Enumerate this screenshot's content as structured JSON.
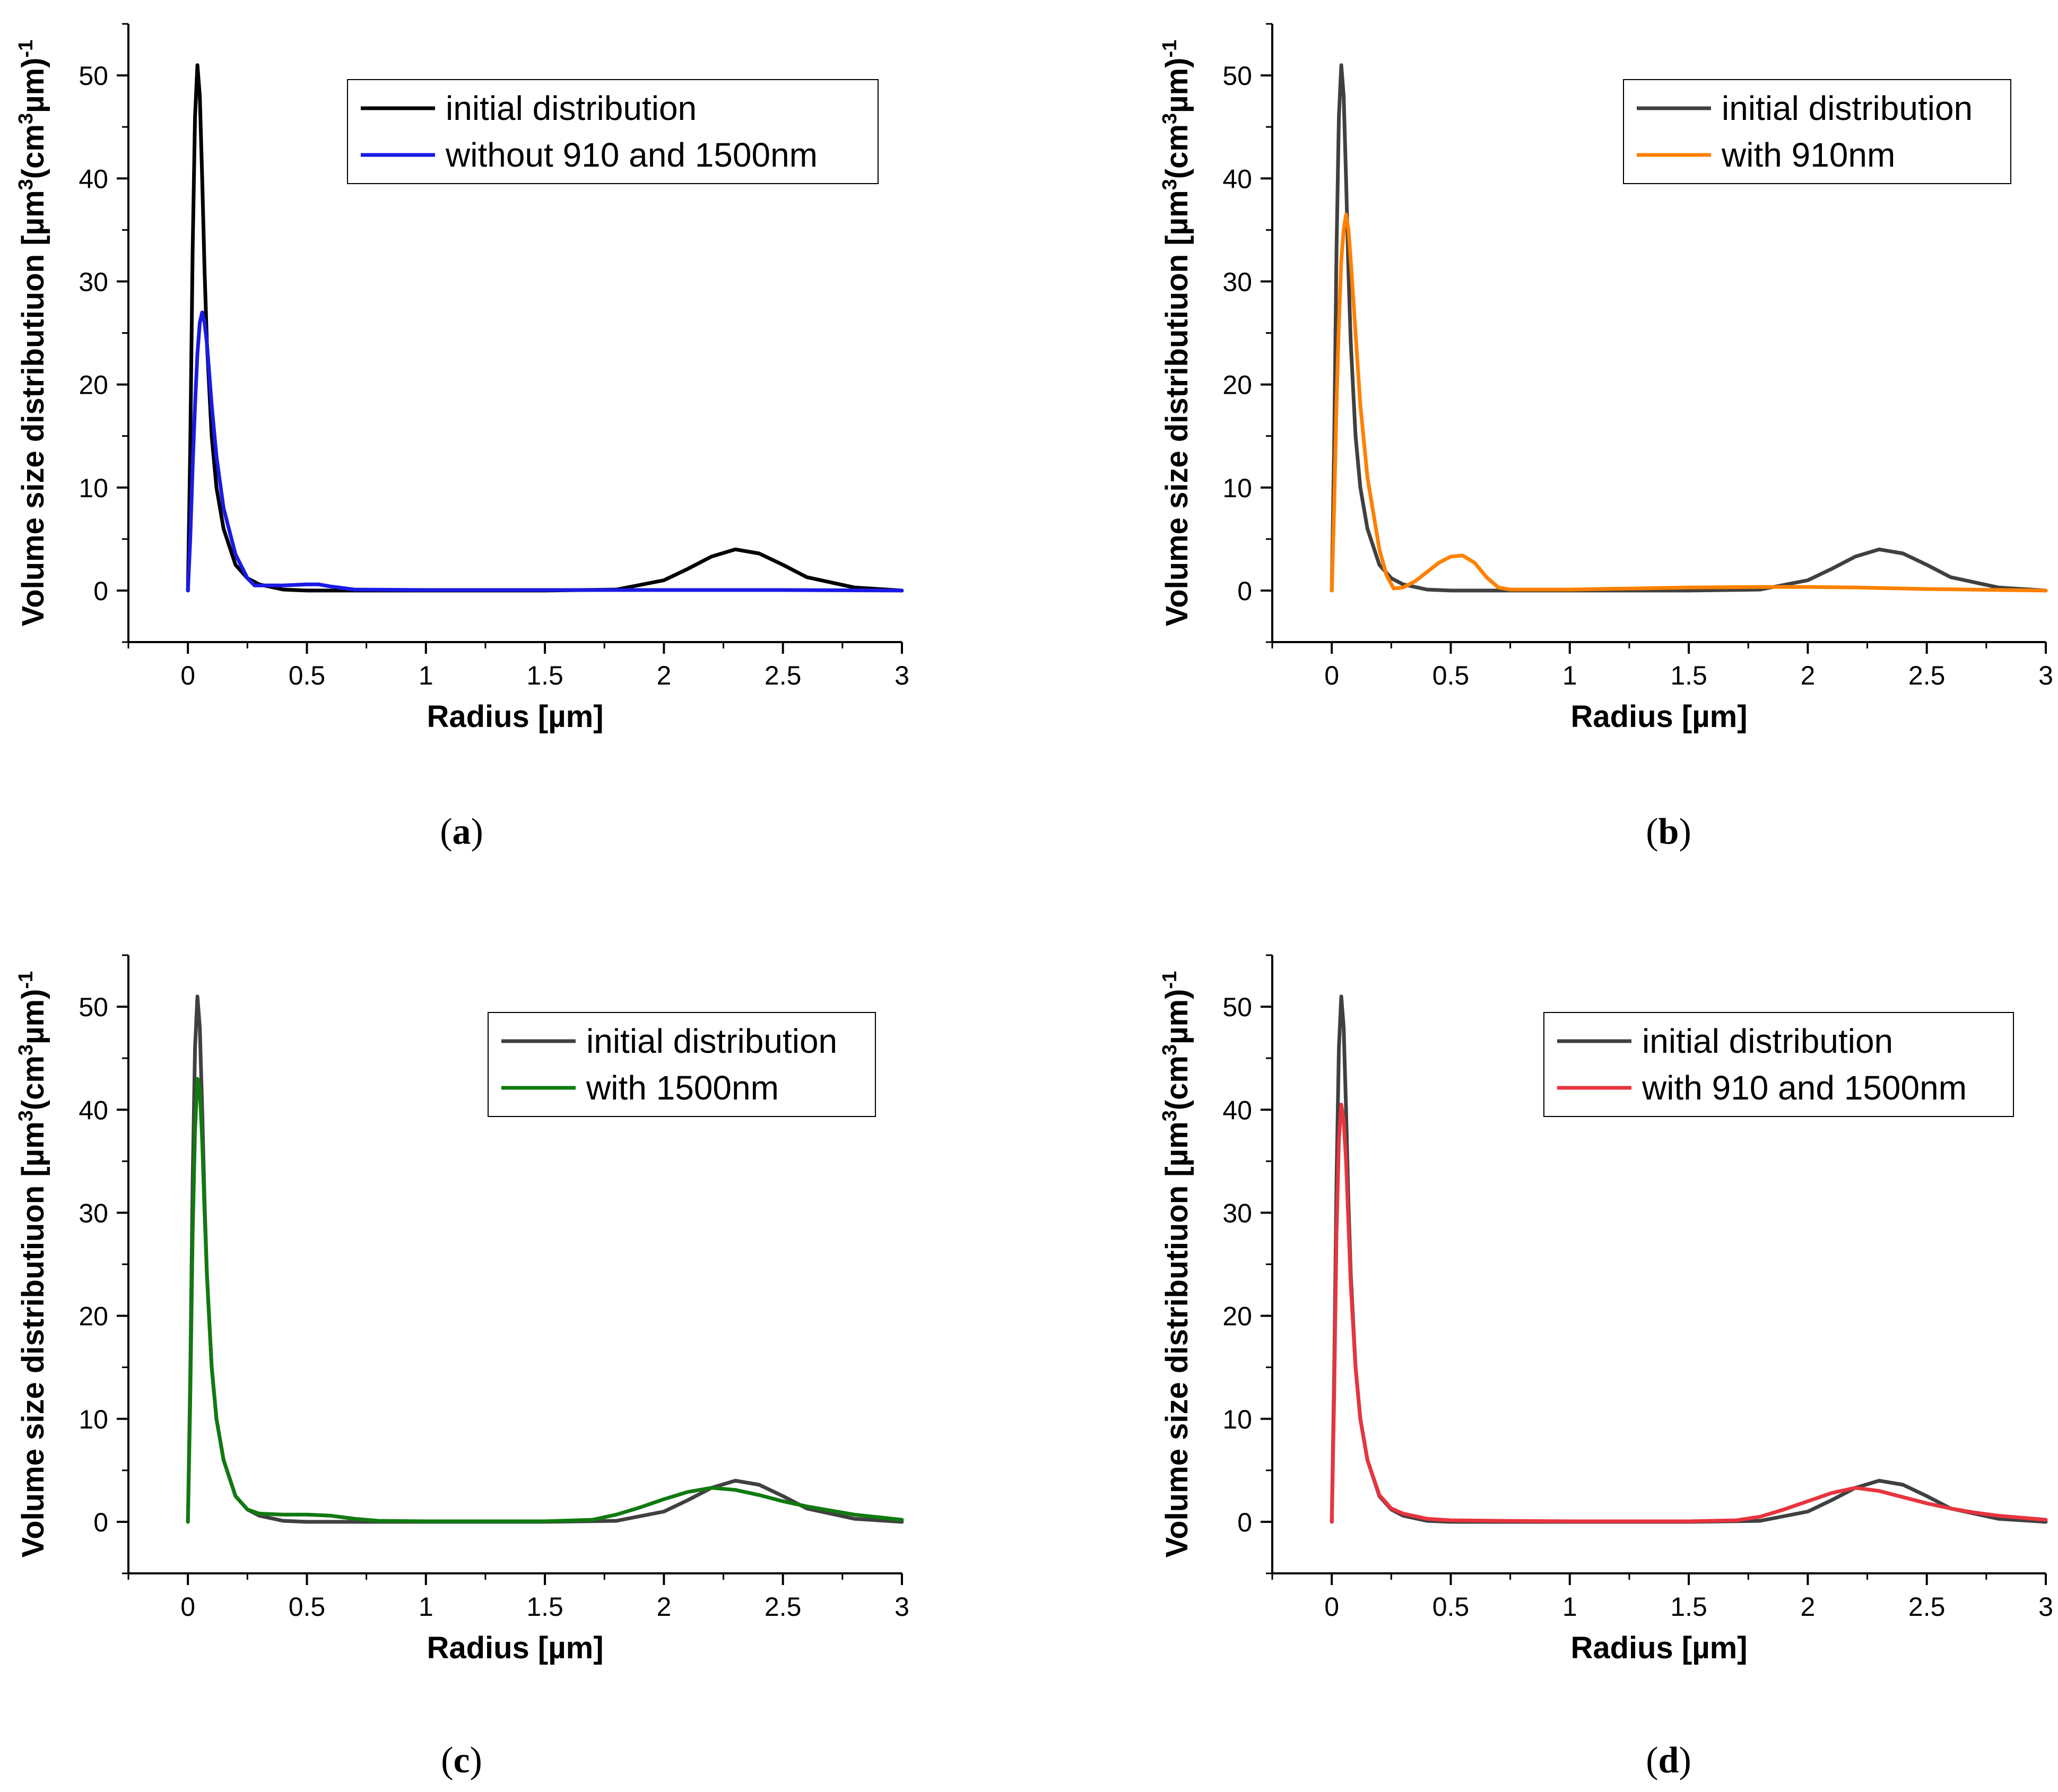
{
  "chart_data": [
    {
      "type": "line",
      "caption_letter": "a",
      "xlabel": "Radius [µm]",
      "ylabel_main": "Volume size distributiuon [µm",
      "ylabel_sup1": "3",
      "ylabel_mid": "(cm",
      "ylabel_sup2": "3",
      "ylabel_end": "µm)",
      "ylabel_sup3": "-1",
      "xlim": [
        -0.25,
        3
      ],
      "ylim": [
        -5,
        55
      ],
      "xticks": [
        0,
        0.5,
        1,
        1.5,
        2,
        2.5,
        3
      ],
      "xtick_labels": [
        "0",
        "0.5",
        "1",
        "1.5",
        "2",
        "2.5",
        "3"
      ],
      "yticks": [
        0,
        10,
        20,
        30,
        40,
        50
      ],
      "ytick_labels": [
        "0",
        "10",
        "20",
        "30",
        "40",
        "50"
      ],
      "legend_position": "top-right",
      "series": [
        {
          "name": "initial distribution",
          "color": "#000000",
          "x": [
            0,
            0.01,
            0.02,
            0.03,
            0.04,
            0.05,
            0.06,
            0.07,
            0.08,
            0.1,
            0.12,
            0.15,
            0.2,
            0.25,
            0.3,
            0.4,
            0.5,
            0.7,
            1.0,
            1.5,
            1.8,
            2.0,
            2.1,
            2.2,
            2.3,
            2.4,
            2.5,
            2.6,
            2.8,
            3.0
          ],
          "y": [
            0,
            14,
            33,
            46,
            51,
            48,
            40,
            31,
            24,
            15,
            10,
            6,
            2.5,
            1.2,
            0.6,
            0.1,
            0,
            0,
            0,
            0,
            0.1,
            1.0,
            2.1,
            3.3,
            4.0,
            3.6,
            2.5,
            1.3,
            0.3,
            0
          ]
        },
        {
          "name": "without 910 and 1500nm",
          "color": "#1a1ae6",
          "x": [
            0,
            0.01,
            0.02,
            0.03,
            0.04,
            0.05,
            0.06,
            0.07,
            0.08,
            0.1,
            0.12,
            0.15,
            0.2,
            0.25,
            0.28,
            0.3,
            0.4,
            0.5,
            0.55,
            0.6,
            0.7,
            1.0,
            1.5,
            2.0,
            2.5,
            3.0
          ],
          "y": [
            0,
            5,
            12,
            18,
            23,
            26,
            27,
            26,
            24,
            18,
            13,
            8,
            3.5,
            1.2,
            0.5,
            0.5,
            0.5,
            0.6,
            0.6,
            0.4,
            0.1,
            0.05,
            0.05,
            0.05,
            0.05,
            0
          ]
        }
      ]
    },
    {
      "type": "line",
      "caption_letter": "b",
      "xlabel": "Radius [µm]",
      "ylabel_main": "Volume size distributiuon [µm",
      "ylabel_sup1": "3",
      "ylabel_mid": "(cm",
      "ylabel_sup2": "3",
      "ylabel_end": "µm)",
      "ylabel_sup3": "-1",
      "xlim": [
        -0.25,
        3
      ],
      "ylim": [
        -5,
        55
      ],
      "xticks": [
        0,
        0.5,
        1,
        1.5,
        2,
        2.5,
        3
      ],
      "xtick_labels": [
        "0",
        "0.5",
        "1",
        "1.5",
        "2",
        "2.5",
        "3"
      ],
      "yticks": [
        0,
        10,
        20,
        30,
        40,
        50
      ],
      "ytick_labels": [
        "0",
        "10",
        "20",
        "30",
        "40",
        "50"
      ],
      "legend_position": "top-right",
      "series": [
        {
          "name": "initial distribution",
          "color": "#404040",
          "x": [
            0,
            0.01,
            0.02,
            0.03,
            0.04,
            0.05,
            0.06,
            0.07,
            0.08,
            0.1,
            0.12,
            0.15,
            0.2,
            0.25,
            0.3,
            0.4,
            0.5,
            0.7,
            1.0,
            1.5,
            1.8,
            2.0,
            2.1,
            2.2,
            2.3,
            2.4,
            2.5,
            2.6,
            2.8,
            3.0
          ],
          "y": [
            0,
            14,
            33,
            46,
            51,
            48,
            40,
            31,
            24,
            15,
            10,
            6,
            2.5,
            1.2,
            0.6,
            0.1,
            0,
            0,
            0,
            0,
            0.1,
            1.0,
            2.1,
            3.3,
            4.0,
            3.6,
            2.5,
            1.3,
            0.3,
            0
          ]
        },
        {
          "name": "with 910nm",
          "color": "#ff8000",
          "x": [
            0,
            0.01,
            0.02,
            0.03,
            0.04,
            0.05,
            0.06,
            0.07,
            0.08,
            0.1,
            0.12,
            0.15,
            0.2,
            0.23,
            0.26,
            0.3,
            0.35,
            0.4,
            0.45,
            0.5,
            0.55,
            0.6,
            0.65,
            0.7,
            0.75,
            1.0,
            1.5,
            1.8,
            2.0,
            2.2,
            2.5,
            3.0
          ],
          "y": [
            0,
            8,
            18,
            26,
            32,
            35,
            36.5,
            35,
            32,
            25,
            18,
            11,
            4,
            1.5,
            0.2,
            0.3,
            0.9,
            1.8,
            2.7,
            3.3,
            3.4,
            2.7,
            1.3,
            0.3,
            0.1,
            0.1,
            0.3,
            0.35,
            0.35,
            0.3,
            0.15,
            0
          ]
        }
      ]
    },
    {
      "type": "line",
      "caption_letter": "c",
      "xlabel": "Radius [µm]",
      "ylabel_main": "Volume size distributiuon [µm",
      "ylabel_sup1": "3",
      "ylabel_mid": "(cm",
      "ylabel_sup2": "3",
      "ylabel_end": "µm)",
      "ylabel_sup3": "-1",
      "xlim": [
        -0.25,
        3
      ],
      "ylim": [
        -5,
        55
      ],
      "xticks": [
        0,
        0.5,
        1,
        1.5,
        2,
        2.5,
        3
      ],
      "xtick_labels": [
        "0",
        "0.5",
        "1",
        "1.5",
        "2",
        "2.5",
        "3"
      ],
      "yticks": [
        0,
        10,
        20,
        30,
        40,
        50
      ],
      "ytick_labels": [
        "0",
        "10",
        "20",
        "30",
        "40",
        "50"
      ],
      "legend_position": "top-right",
      "series": [
        {
          "name": "initial distribution",
          "color": "#404040",
          "x": [
            0,
            0.01,
            0.02,
            0.03,
            0.04,
            0.05,
            0.06,
            0.07,
            0.08,
            0.1,
            0.12,
            0.15,
            0.2,
            0.25,
            0.3,
            0.4,
            0.5,
            0.7,
            1.0,
            1.5,
            1.8,
            2.0,
            2.1,
            2.2,
            2.3,
            2.4,
            2.5,
            2.6,
            2.8,
            3.0
          ],
          "y": [
            0,
            14,
            33,
            46,
            51,
            48,
            40,
            31,
            24,
            15,
            10,
            6,
            2.5,
            1.2,
            0.6,
            0.1,
            0,
            0,
            0,
            0,
            0.1,
            1.0,
            2.1,
            3.3,
            4.0,
            3.6,
            2.5,
            1.3,
            0.3,
            0
          ]
        },
        {
          "name": "with 1500nm",
          "color": "#107a10",
          "x": [
            0,
            0.01,
            0.02,
            0.03,
            0.04,
            0.05,
            0.06,
            0.07,
            0.08,
            0.1,
            0.12,
            0.15,
            0.2,
            0.25,
            0.3,
            0.4,
            0.5,
            0.6,
            0.7,
            0.8,
            1.0,
            1.5,
            1.7,
            1.8,
            1.9,
            2.0,
            2.1,
            2.2,
            2.3,
            2.4,
            2.5,
            2.6,
            2.7,
            2.8,
            3.0
          ],
          "y": [
            0,
            12,
            28,
            38,
            43,
            42,
            37,
            30,
            24,
            15,
            10,
            6,
            2.5,
            1.2,
            0.8,
            0.7,
            0.7,
            0.6,
            0.3,
            0.1,
            0.05,
            0.05,
            0.2,
            0.7,
            1.4,
            2.2,
            2.9,
            3.3,
            3.1,
            2.6,
            2.0,
            1.5,
            1.1,
            0.7,
            0.2
          ]
        }
      ]
    },
    {
      "type": "line",
      "caption_letter": "d",
      "xlabel": "Radius [µm]",
      "ylabel_main": "Volume size distributiuon [µm",
      "ylabel_sup1": "3",
      "ylabel_mid": "(cm",
      "ylabel_sup2": "3",
      "ylabel_end": "µm)",
      "ylabel_sup3": "-1",
      "xlim": [
        -0.25,
        3
      ],
      "ylim": [
        -5,
        55
      ],
      "xticks": [
        0,
        0.5,
        1,
        1.5,
        2,
        2.5,
        3
      ],
      "xtick_labels": [
        "0",
        "0.5",
        "1",
        "1.5",
        "2",
        "2.5",
        "3"
      ],
      "yticks": [
        0,
        10,
        20,
        30,
        40,
        50
      ],
      "ytick_labels": [
        "0",
        "10",
        "20",
        "30",
        "40",
        "50"
      ],
      "legend_position": "top-right",
      "series": [
        {
          "name": "initial distribution",
          "color": "#404040",
          "x": [
            0,
            0.01,
            0.02,
            0.03,
            0.04,
            0.05,
            0.06,
            0.07,
            0.08,
            0.1,
            0.12,
            0.15,
            0.2,
            0.25,
            0.3,
            0.4,
            0.5,
            0.7,
            1.0,
            1.5,
            1.8,
            2.0,
            2.1,
            2.2,
            2.3,
            2.4,
            2.5,
            2.6,
            2.8,
            3.0
          ],
          "y": [
            0,
            14,
            33,
            46,
            51,
            48,
            40,
            31,
            24,
            15,
            10,
            6,
            2.5,
            1.2,
            0.6,
            0.1,
            0,
            0,
            0,
            0,
            0.1,
            1.0,
            2.1,
            3.3,
            4.0,
            3.6,
            2.5,
            1.3,
            0.3,
            0
          ]
        },
        {
          "name": "with 910 and 1500nm",
          "color": "#e8343e",
          "x": [
            0,
            0.01,
            0.02,
            0.03,
            0.04,
            0.05,
            0.06,
            0.07,
            0.08,
            0.1,
            0.12,
            0.15,
            0.2,
            0.25,
            0.3,
            0.4,
            0.5,
            0.7,
            1.0,
            1.5,
            1.7,
            1.8,
            1.9,
            2.0,
            2.1,
            2.2,
            2.3,
            2.4,
            2.5,
            2.6,
            2.7,
            2.8,
            3.0
          ],
          "y": [
            0,
            12,
            28,
            37,
            40.5,
            39,
            35,
            29,
            23,
            15,
            10,
            6,
            2.6,
            1.3,
            0.8,
            0.3,
            0.15,
            0.1,
            0.05,
            0.05,
            0.15,
            0.5,
            1.2,
            2.0,
            2.8,
            3.3,
            3.0,
            2.4,
            1.8,
            1.3,
            0.9,
            0.6,
            0.2
          ]
        }
      ]
    }
  ]
}
